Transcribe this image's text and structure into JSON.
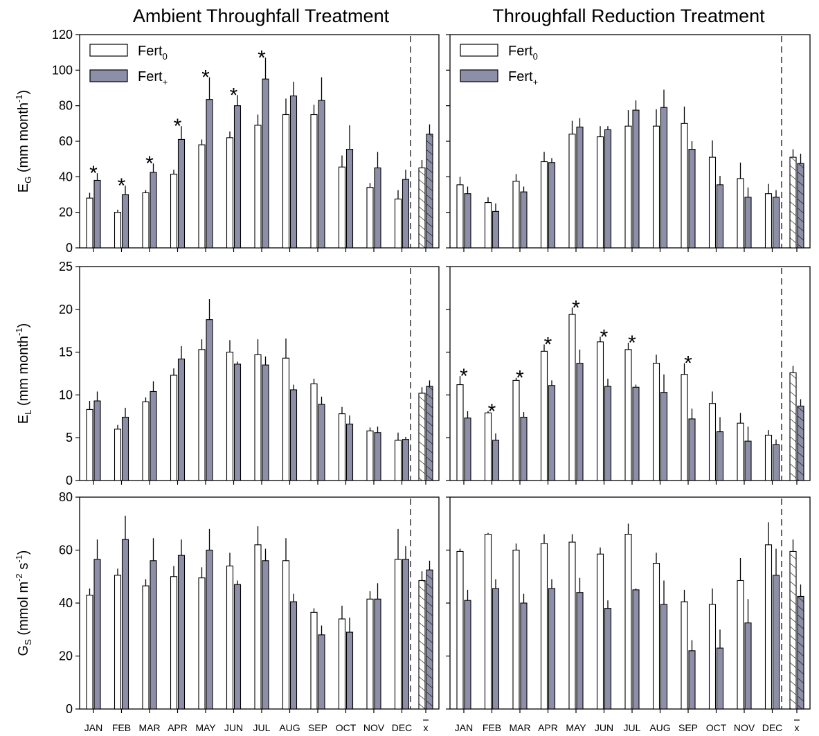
{
  "titles": {
    "left": "Ambient Throughfall Treatment",
    "right": "Throughfall Reduction Treatment"
  },
  "legend": [
    {
      "name": "Fert",
      "sub": "0",
      "fill": "#ffffff"
    },
    {
      "name": "Fert",
      "sub": "+",
      "fill": "#8d8fa8"
    }
  ],
  "colors": {
    "fert0": "#ffffff",
    "fertplus": "#8d8fa8",
    "axis": "#000000"
  },
  "months": [
    "JAN",
    "FEB",
    "MAR",
    "APR",
    "MAY",
    "JUN",
    "JUL",
    "AUG",
    "SEP",
    "OCT",
    "NOV",
    "DEC"
  ],
  "mean_label": "x",
  "rows": [
    {
      "ylabel_main": "E",
      "ylabel_sub": "G",
      "ylabel_unit": "(mm month",
      "ylabel_exp": "-1",
      "ylabel_end": ")",
      "yticks": [
        0,
        20,
        40,
        60,
        80,
        100,
        120
      ]
    },
    {
      "ylabel_main": "E",
      "ylabel_sub": "L",
      "ylabel_unit": "(mm month",
      "ylabel_exp": "-1",
      "ylabel_end": ")",
      "yticks": [
        0,
        5,
        10,
        15,
        20,
        25
      ]
    },
    {
      "ylabel_main": "G",
      "ylabel_sub": "S",
      "ylabel_unit": "(mmol m",
      "ylabel_exp": "-2",
      "ylabel_mid": " s",
      "ylabel_exp2": "-1",
      "ylabel_end": ")",
      "yticks": [
        0,
        20,
        40,
        60,
        80
      ]
    }
  ],
  "chart_data": [
    {
      "type": "bar",
      "panel": "EG - Ambient Throughfall Treatment",
      "ylim": [
        0,
        120
      ],
      "categories": [
        "JAN",
        "FEB",
        "MAR",
        "APR",
        "MAY",
        "JUN",
        "JUL",
        "AUG",
        "SEP",
        "OCT",
        "NOV",
        "DEC"
      ],
      "series": [
        {
          "name": "Fert0",
          "values": [
            28,
            20,
            31,
            41.5,
            58,
            62,
            69,
            75,
            75,
            45.5,
            34,
            27.5
          ],
          "errors": [
            3,
            1.5,
            1.5,
            2.5,
            3,
            3.5,
            6,
            9,
            5.5,
            6.5,
            2.5,
            5
          ]
        },
        {
          "name": "Fert+",
          "values": [
            38,
            30,
            42.5,
            61,
            83.5,
            80,
            95,
            85.5,
            83,
            55.5,
            45,
            38.5
          ],
          "errors": [
            4,
            5,
            5,
            7.5,
            12.5,
            6,
            12,
            8,
            13,
            13.5,
            9,
            5.5
          ]
        }
      ],
      "mean": {
        "Fert0": 45,
        "Fert+": 64,
        "errors": [
          4.5,
          5.5
        ]
      },
      "significant": [
        true,
        true,
        true,
        true,
        true,
        true,
        true,
        false,
        false,
        false,
        false,
        false
      ]
    },
    {
      "type": "bar",
      "panel": "EG - Throughfall Reduction Treatment",
      "ylim": [
        0,
        120
      ],
      "categories": [
        "JAN",
        "FEB",
        "MAR",
        "APR",
        "MAY",
        "JUN",
        "JUL",
        "AUG",
        "SEP",
        "OCT",
        "NOV",
        "DEC"
      ],
      "series": [
        {
          "name": "Fert0",
          "values": [
            35.5,
            25.5,
            37.5,
            48.5,
            64,
            62.5,
            68.5,
            68.5,
            70,
            51,
            39,
            30.5
          ],
          "errors": [
            4.5,
            3,
            4,
            5.5,
            7.5,
            6,
            9,
            9.5,
            9.5,
            9.5,
            9,
            5.5
          ]
        },
        {
          "name": "Fert+",
          "values": [
            30.5,
            20.5,
            31.5,
            48,
            68,
            66.5,
            77.5,
            79,
            55.5,
            35.5,
            28.5,
            28.5
          ],
          "errors": [
            4,
            4.5,
            3,
            2.5,
            5,
            2,
            5.5,
            10,
            4.5,
            5,
            5.5,
            4
          ]
        }
      ],
      "mean": {
        "Fert0": 51,
        "Fert+": 47.5,
        "errors": [
          4.5,
          5.5
        ]
      },
      "significant": [
        false,
        false,
        false,
        false,
        false,
        false,
        false,
        false,
        false,
        false,
        false,
        false
      ]
    },
    {
      "type": "bar",
      "panel": "EL - Ambient Throughfall Treatment",
      "ylim": [
        0,
        25
      ],
      "categories": [
        "JAN",
        "FEB",
        "MAR",
        "APR",
        "MAY",
        "JUN",
        "JUL",
        "AUG",
        "SEP",
        "OCT",
        "NOV",
        "DEC"
      ],
      "series": [
        {
          "name": "Fert0",
          "values": [
            8.3,
            6,
            9.2,
            12.3,
            15.3,
            15,
            14.7,
            14.3,
            11.3,
            7.8,
            5.8,
            4.7
          ],
          "errors": [
            1,
            0.5,
            0.5,
            0.8,
            1.2,
            1.4,
            1.8,
            2.3,
            0.6,
            0.8,
            0.4,
            0.9
          ]
        },
        {
          "name": "Fert+",
          "values": [
            9.3,
            7.4,
            10.4,
            14.2,
            18.8,
            13.6,
            13.5,
            10.6,
            8.9,
            6.6,
            5.6,
            4.8
          ],
          "errors": [
            1.1,
            1.1,
            1.2,
            1.5,
            2.4,
            0.3,
            1,
            0.6,
            0.9,
            1,
            0.7,
            0.3
          ]
        }
      ],
      "mean": {
        "Fert0": 10.2,
        "Fert+": 11,
        "errors": [
          0.7,
          0.7
        ]
      },
      "significant": [
        false,
        false,
        false,
        false,
        false,
        false,
        false,
        false,
        false,
        false,
        false,
        false
      ]
    },
    {
      "type": "bar",
      "panel": "EL - Throughfall Reduction Treatment",
      "ylim": [
        0,
        25
      ],
      "categories": [
        "JAN",
        "FEB",
        "MAR",
        "APR",
        "MAY",
        "JUN",
        "JUL",
        "AUG",
        "SEP",
        "OCT",
        "NOV",
        "DEC"
      ],
      "series": [
        {
          "name": "Fert0",
          "values": [
            11.2,
            7.9,
            11.7,
            15.1,
            19.4,
            16.2,
            15.3,
            13.7,
            12.4,
            9,
            6.7,
            5.3
          ],
          "errors": [
            1,
            0.2,
            0.3,
            0.8,
            0.8,
            0.6,
            0.8,
            1,
            1.3,
            1.4,
            1.2,
            0.6
          ]
        },
        {
          "name": "Fert+",
          "values": [
            7.3,
            4.7,
            7.4,
            11.1,
            13.7,
            11,
            10.9,
            10.3,
            7.2,
            5.7,
            4.6,
            4.2
          ],
          "errors": [
            0.8,
            0.8,
            0.6,
            0.6,
            1.6,
            0.9,
            0.3,
            2.1,
            1.2,
            1.7,
            1.7,
            0.6
          ]
        }
      ],
      "mean": {
        "Fert0": 12.6,
        "Fert+": 8.7,
        "errors": [
          0.8,
          0.8
        ]
      },
      "significant": [
        true,
        true,
        true,
        true,
        true,
        true,
        true,
        false,
        true,
        false,
        false,
        false
      ]
    },
    {
      "type": "bar",
      "panel": "GS - Ambient Throughfall Treatment",
      "ylim": [
        0,
        80
      ],
      "categories": [
        "JAN",
        "FEB",
        "MAR",
        "APR",
        "MAY",
        "JUN",
        "JUL",
        "AUG",
        "SEP",
        "OCT",
        "NOV",
        "DEC"
      ],
      "series": [
        {
          "name": "Fert0",
          "values": [
            43,
            50.5,
            46.5,
            50,
            49.5,
            54,
            62,
            56,
            36.5,
            34,
            41.5,
            56.5
          ],
          "errors": [
            2.5,
            2.5,
            2.5,
            4,
            4,
            5,
            7,
            8.5,
            1.5,
            5,
            3,
            11.5
          ]
        },
        {
          "name": "Fert+",
          "values": [
            56.5,
            64,
            56,
            58,
            60,
            47,
            56,
            40.5,
            28,
            29,
            41.5,
            56.5
          ],
          "errors": [
            7.5,
            9,
            8.5,
            6,
            8,
            1.5,
            4.5,
            3,
            3.5,
            5.5,
            6,
            5
          ]
        }
      ],
      "mean": {
        "Fert0": 48.5,
        "Fert+": 52.5,
        "errors": [
          3.5,
          3.5
        ]
      },
      "significant": [
        false,
        false,
        false,
        false,
        false,
        false,
        false,
        false,
        false,
        false,
        false,
        false
      ]
    },
    {
      "type": "bar",
      "panel": "GS - Throughfall Reduction Treatment",
      "ylim": [
        0,
        80
      ],
      "categories": [
        "JAN",
        "FEB",
        "MAR",
        "APR",
        "MAY",
        "JUN",
        "JUL",
        "AUG",
        "SEP",
        "OCT",
        "NOV",
        "DEC"
      ],
      "series": [
        {
          "name": "Fert0",
          "values": [
            59.5,
            66,
            60,
            62.5,
            63,
            58.5,
            66,
            55,
            40.5,
            39.5,
            48.5,
            62
          ],
          "errors": [
            1,
            0.5,
            2.5,
            3.5,
            3,
            2.5,
            4,
            4,
            4.5,
            6,
            8.5,
            8.5
          ]
        },
        {
          "name": "Fert+",
          "values": [
            41,
            45.5,
            40,
            45.5,
            44,
            38,
            45,
            39.5,
            22,
            23,
            32.5,
            50.5
          ],
          "errors": [
            4,
            3.5,
            3.5,
            3.5,
            5.5,
            3,
            0.5,
            9,
            4,
            7,
            9,
            10
          ]
        }
      ],
      "mean": {
        "Fert0": 59.5,
        "Fert+": 42.5,
        "errors": [
          4.5,
          4.5
        ]
      },
      "significant": [
        false,
        false,
        false,
        false,
        false,
        false,
        false,
        false,
        false,
        false,
        false,
        false
      ]
    }
  ]
}
